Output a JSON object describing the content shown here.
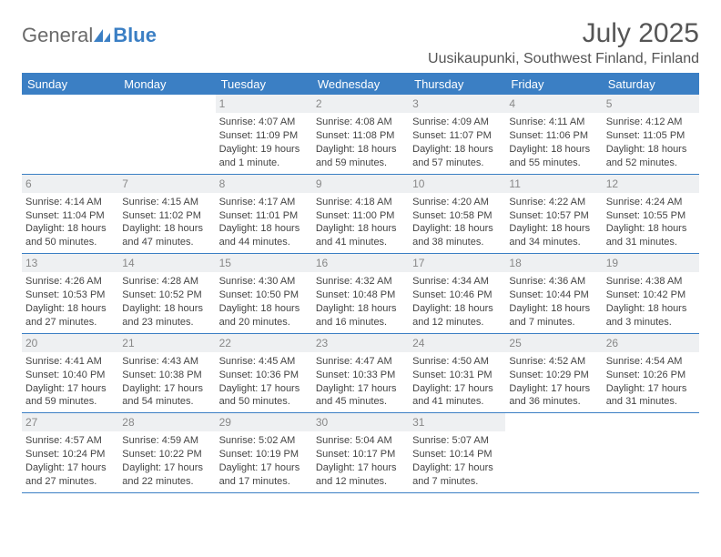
{
  "brand": {
    "general": "General",
    "blue": "Blue",
    "icon_color": "#3b7fc4"
  },
  "title": {
    "month": "July 2025",
    "location": "Uusikaupunki, Southwest Finland, Finland"
  },
  "colors": {
    "header_bg": "#3b7fc4",
    "header_text": "#ffffff",
    "row_divider": "#3b7fc4",
    "daynum_bg": "#eef0f2",
    "daynum_text": "#888888",
    "body_text": "#444444",
    "background": "#ffffff"
  },
  "typography": {
    "month_fontsize": 30,
    "location_fontsize": 16,
    "dow_fontsize": 13,
    "cell_fontsize": 11,
    "logo_fontsize": 22
  },
  "days_of_week": [
    "Sunday",
    "Monday",
    "Tuesday",
    "Wednesday",
    "Thursday",
    "Friday",
    "Saturday"
  ],
  "weeks": [
    [
      null,
      null,
      {
        "n": "1",
        "sr": "Sunrise: 4:07 AM",
        "ss": "Sunset: 11:09 PM",
        "dl1": "Daylight: 19 hours",
        "dl2": "and 1 minute."
      },
      {
        "n": "2",
        "sr": "Sunrise: 4:08 AM",
        "ss": "Sunset: 11:08 PM",
        "dl1": "Daylight: 18 hours",
        "dl2": "and 59 minutes."
      },
      {
        "n": "3",
        "sr": "Sunrise: 4:09 AM",
        "ss": "Sunset: 11:07 PM",
        "dl1": "Daylight: 18 hours",
        "dl2": "and 57 minutes."
      },
      {
        "n": "4",
        "sr": "Sunrise: 4:11 AM",
        "ss": "Sunset: 11:06 PM",
        "dl1": "Daylight: 18 hours",
        "dl2": "and 55 minutes."
      },
      {
        "n": "5",
        "sr": "Sunrise: 4:12 AM",
        "ss": "Sunset: 11:05 PM",
        "dl1": "Daylight: 18 hours",
        "dl2": "and 52 minutes."
      }
    ],
    [
      {
        "n": "6",
        "sr": "Sunrise: 4:14 AM",
        "ss": "Sunset: 11:04 PM",
        "dl1": "Daylight: 18 hours",
        "dl2": "and 50 minutes."
      },
      {
        "n": "7",
        "sr": "Sunrise: 4:15 AM",
        "ss": "Sunset: 11:02 PM",
        "dl1": "Daylight: 18 hours",
        "dl2": "and 47 minutes."
      },
      {
        "n": "8",
        "sr": "Sunrise: 4:17 AM",
        "ss": "Sunset: 11:01 PM",
        "dl1": "Daylight: 18 hours",
        "dl2": "and 44 minutes."
      },
      {
        "n": "9",
        "sr": "Sunrise: 4:18 AM",
        "ss": "Sunset: 11:00 PM",
        "dl1": "Daylight: 18 hours",
        "dl2": "and 41 minutes."
      },
      {
        "n": "10",
        "sr": "Sunrise: 4:20 AM",
        "ss": "Sunset: 10:58 PM",
        "dl1": "Daylight: 18 hours",
        "dl2": "and 38 minutes."
      },
      {
        "n": "11",
        "sr": "Sunrise: 4:22 AM",
        "ss": "Sunset: 10:57 PM",
        "dl1": "Daylight: 18 hours",
        "dl2": "and 34 minutes."
      },
      {
        "n": "12",
        "sr": "Sunrise: 4:24 AM",
        "ss": "Sunset: 10:55 PM",
        "dl1": "Daylight: 18 hours",
        "dl2": "and 31 minutes."
      }
    ],
    [
      {
        "n": "13",
        "sr": "Sunrise: 4:26 AM",
        "ss": "Sunset: 10:53 PM",
        "dl1": "Daylight: 18 hours",
        "dl2": "and 27 minutes."
      },
      {
        "n": "14",
        "sr": "Sunrise: 4:28 AM",
        "ss": "Sunset: 10:52 PM",
        "dl1": "Daylight: 18 hours",
        "dl2": "and 23 minutes."
      },
      {
        "n": "15",
        "sr": "Sunrise: 4:30 AM",
        "ss": "Sunset: 10:50 PM",
        "dl1": "Daylight: 18 hours",
        "dl2": "and 20 minutes."
      },
      {
        "n": "16",
        "sr": "Sunrise: 4:32 AM",
        "ss": "Sunset: 10:48 PM",
        "dl1": "Daylight: 18 hours",
        "dl2": "and 16 minutes."
      },
      {
        "n": "17",
        "sr": "Sunrise: 4:34 AM",
        "ss": "Sunset: 10:46 PM",
        "dl1": "Daylight: 18 hours",
        "dl2": "and 12 minutes."
      },
      {
        "n": "18",
        "sr": "Sunrise: 4:36 AM",
        "ss": "Sunset: 10:44 PM",
        "dl1": "Daylight: 18 hours",
        "dl2": "and 7 minutes."
      },
      {
        "n": "19",
        "sr": "Sunrise: 4:38 AM",
        "ss": "Sunset: 10:42 PM",
        "dl1": "Daylight: 18 hours",
        "dl2": "and 3 minutes."
      }
    ],
    [
      {
        "n": "20",
        "sr": "Sunrise: 4:41 AM",
        "ss": "Sunset: 10:40 PM",
        "dl1": "Daylight: 17 hours",
        "dl2": "and 59 minutes."
      },
      {
        "n": "21",
        "sr": "Sunrise: 4:43 AM",
        "ss": "Sunset: 10:38 PM",
        "dl1": "Daylight: 17 hours",
        "dl2": "and 54 minutes."
      },
      {
        "n": "22",
        "sr": "Sunrise: 4:45 AM",
        "ss": "Sunset: 10:36 PM",
        "dl1": "Daylight: 17 hours",
        "dl2": "and 50 minutes."
      },
      {
        "n": "23",
        "sr": "Sunrise: 4:47 AM",
        "ss": "Sunset: 10:33 PM",
        "dl1": "Daylight: 17 hours",
        "dl2": "and 45 minutes."
      },
      {
        "n": "24",
        "sr": "Sunrise: 4:50 AM",
        "ss": "Sunset: 10:31 PM",
        "dl1": "Daylight: 17 hours",
        "dl2": "and 41 minutes."
      },
      {
        "n": "25",
        "sr": "Sunrise: 4:52 AM",
        "ss": "Sunset: 10:29 PM",
        "dl1": "Daylight: 17 hours",
        "dl2": "and 36 minutes."
      },
      {
        "n": "26",
        "sr": "Sunrise: 4:54 AM",
        "ss": "Sunset: 10:26 PM",
        "dl1": "Daylight: 17 hours",
        "dl2": "and 31 minutes."
      }
    ],
    [
      {
        "n": "27",
        "sr": "Sunrise: 4:57 AM",
        "ss": "Sunset: 10:24 PM",
        "dl1": "Daylight: 17 hours",
        "dl2": "and 27 minutes."
      },
      {
        "n": "28",
        "sr": "Sunrise: 4:59 AM",
        "ss": "Sunset: 10:22 PM",
        "dl1": "Daylight: 17 hours",
        "dl2": "and 22 minutes."
      },
      {
        "n": "29",
        "sr": "Sunrise: 5:02 AM",
        "ss": "Sunset: 10:19 PM",
        "dl1": "Daylight: 17 hours",
        "dl2": "and 17 minutes."
      },
      {
        "n": "30",
        "sr": "Sunrise: 5:04 AM",
        "ss": "Sunset: 10:17 PM",
        "dl1": "Daylight: 17 hours",
        "dl2": "and 12 minutes."
      },
      {
        "n": "31",
        "sr": "Sunrise: 5:07 AM",
        "ss": "Sunset: 10:14 PM",
        "dl1": "Daylight: 17 hours",
        "dl2": "and 7 minutes."
      },
      null,
      null
    ]
  ]
}
